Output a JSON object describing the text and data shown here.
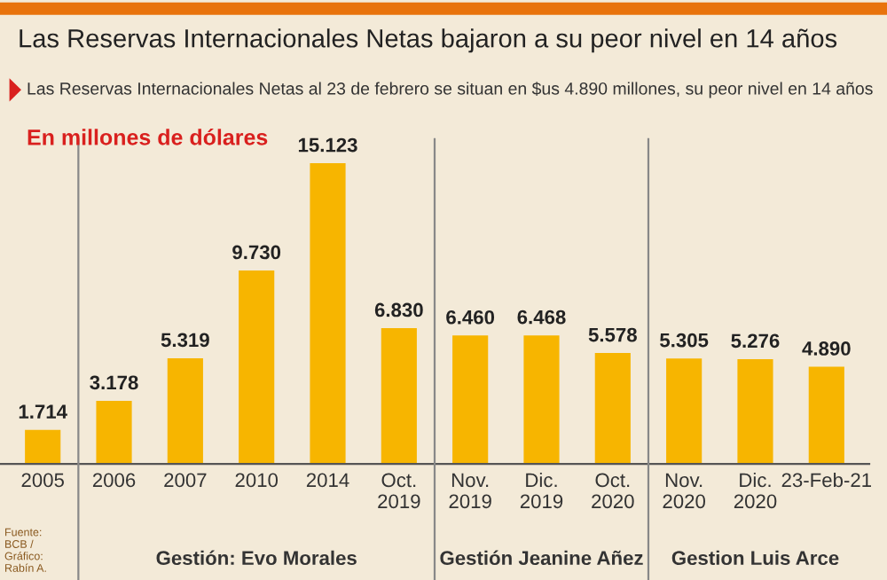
{
  "chart_data": {
    "type": "bar",
    "title": "Las Reservas Internacionales Netas bajaron a su peor nivel en 14 años",
    "subtitle": "Las Reservas Internacionales Netas al 23 de febrero se situan en $us 4.890 millones, su peor nivel en 14 años",
    "ylabel": "En millones de dólares",
    "categories": [
      "2005",
      "2006",
      "2007",
      "2010",
      "2014",
      "Oct.\n2019",
      "Nov.\n2019",
      "Dic.\n2019",
      "Oct.\n2020",
      "Nov.\n2020",
      "Dic.\n2020",
      "23-Feb-21"
    ],
    "values": [
      1714,
      3178,
      5319,
      9730,
      15123,
      6830,
      6460,
      6468,
      5578,
      5305,
      5276,
      4890
    ],
    "value_labels": [
      "1.714",
      "3.178",
      "5.319",
      "9.730",
      "15.123",
      "6.830",
      "6.460",
      "6.468",
      "5.578",
      "5.305",
      "5.276",
      "4.890"
    ],
    "color": "#f7b500",
    "annotations": [
      "Gestión: Evo Morales",
      "Gestión Jeanine Añez",
      "Gestion Luis Arce",
      "Fuente: BCB / Gráfico: Rabín A."
    ]
  }
}
